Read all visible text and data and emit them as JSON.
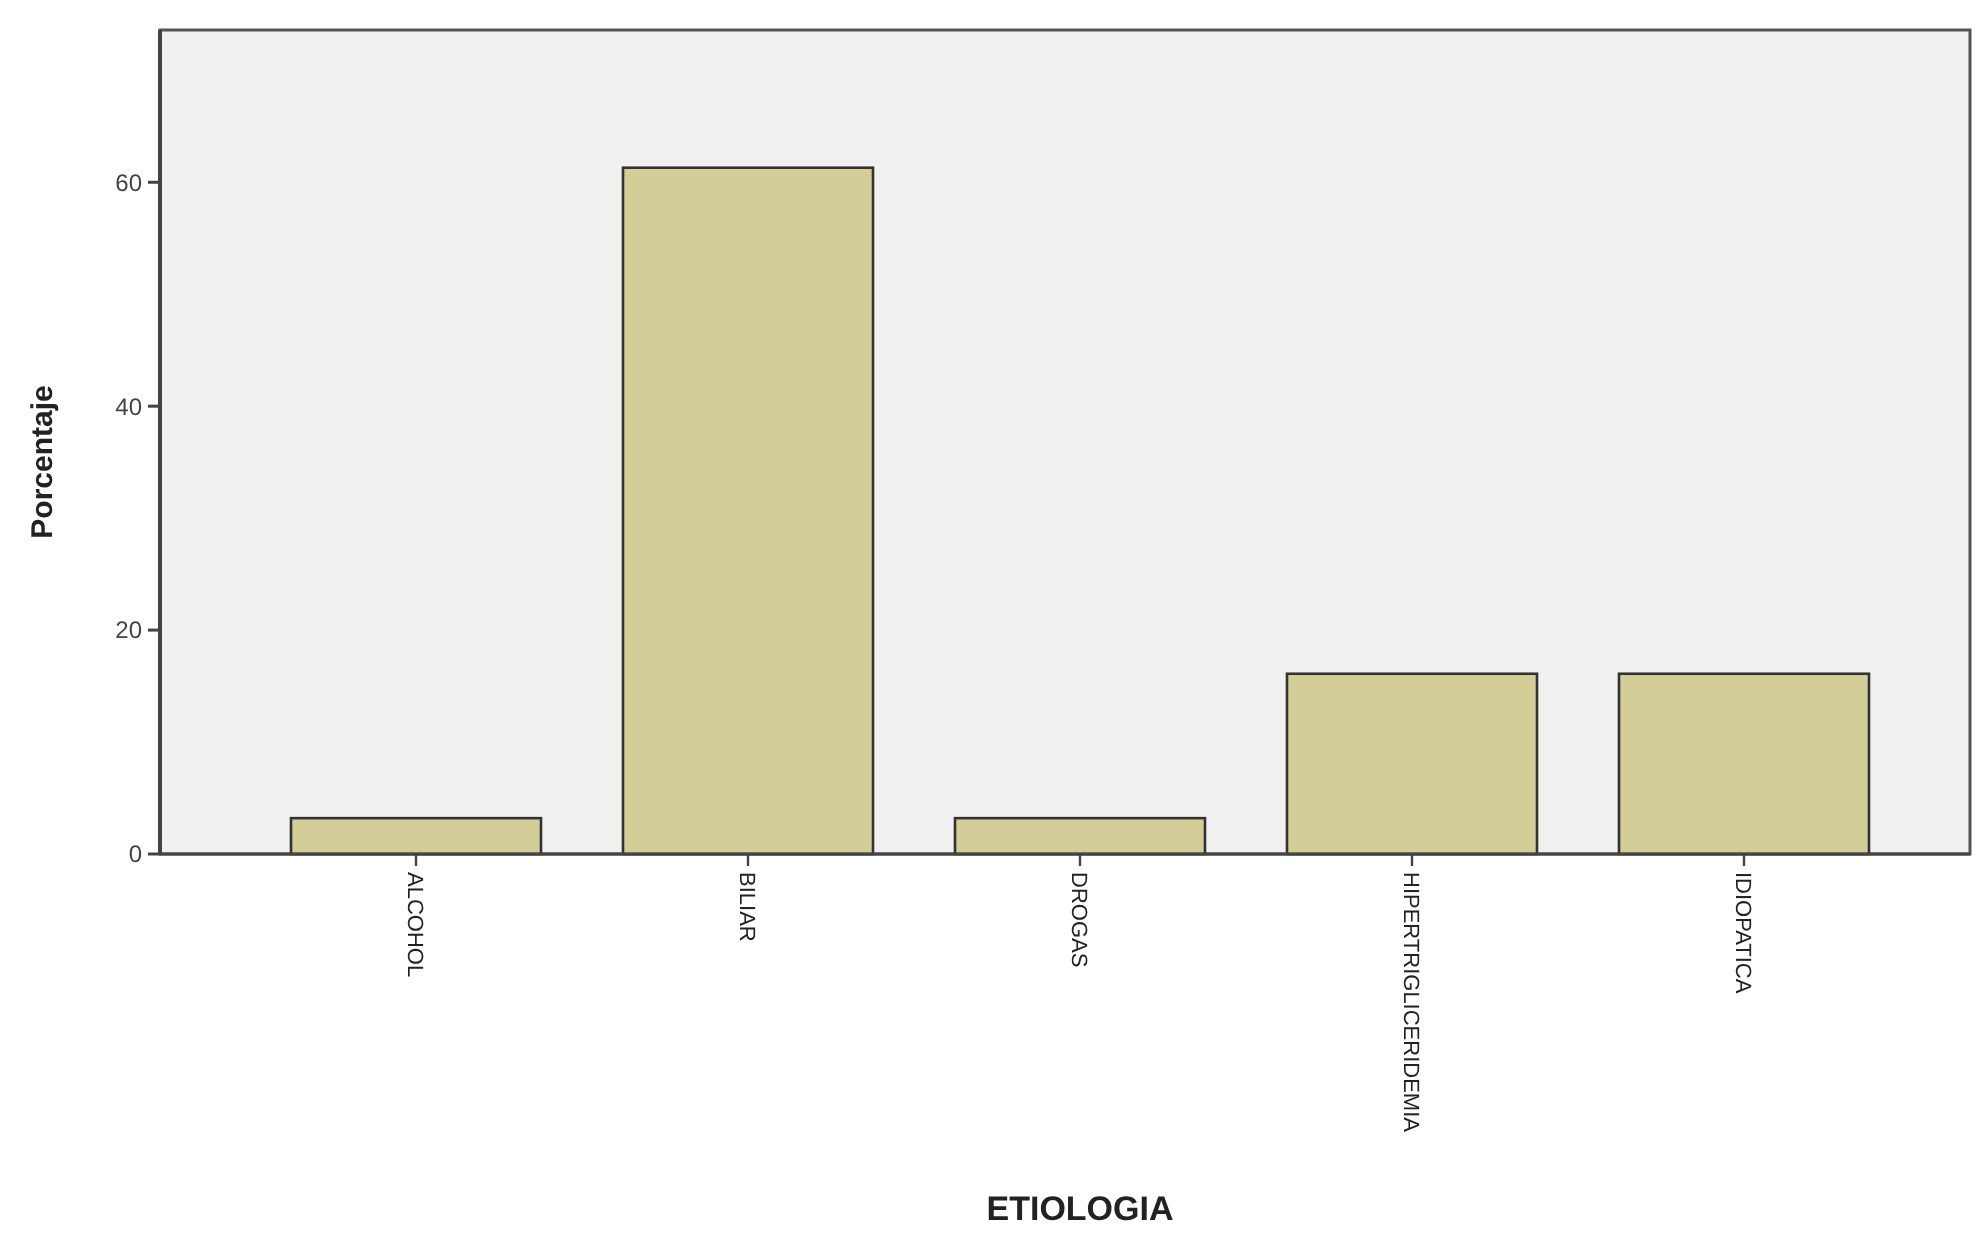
{
  "chart_data": {
    "type": "bar",
    "xlabel": "ETIOLOGIA",
    "ylabel": "Porcentaje",
    "categories": [
      "ALCOHOL",
      "BILIAR",
      "DROGAS",
      "HIPERTRIGLICERIDEMIA",
      "IDIOPATICA"
    ],
    "values": [
      3.2,
      61.3,
      3.2,
      16.1,
      16.1
    ],
    "color": "#d3ce97",
    "ylim": [
      0,
      73.6
    ],
    "yticks": [
      0,
      20,
      40,
      60
    ],
    "grid": false
  }
}
